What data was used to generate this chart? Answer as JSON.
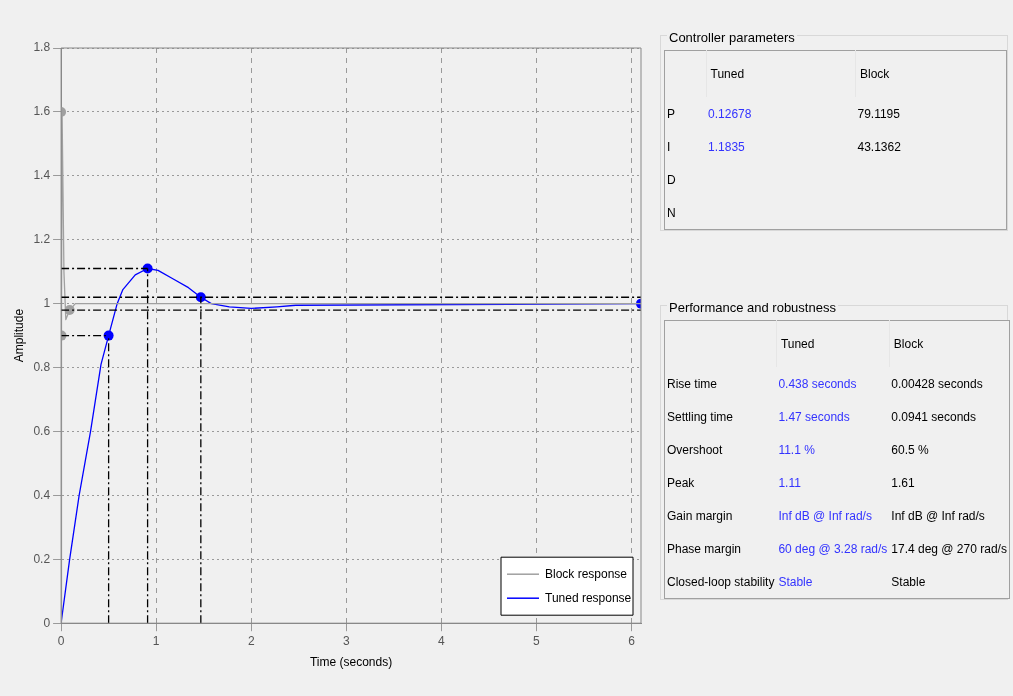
{
  "chart_data": [
    {
      "type": "line",
      "xlabel": "Time (seconds)",
      "ylabel": "Amplitude",
      "xlim": [
        0,
        6.1
      ],
      "xticks": [
        0,
        1,
        2,
        3,
        4,
        5,
        6
      ],
      "ylim": [
        0,
        1.8
      ],
      "yticks": [
        0,
        0.2,
        0.4,
        0.6,
        0.8,
        1,
        1.2,
        1.4,
        1.6,
        1.8
      ],
      "grid": true,
      "legend": "bottom right",
      "ref_lines": [
        {
          "axis": "y",
          "value": 1.02,
          "color": "#000000",
          "line_style": "dashed"
        },
        {
          "axis": "y",
          "value": 0.98,
          "color": "#000000",
          "line_style": "dashed"
        }
      ],
      "series": [
        {
          "color": "#000000",
          "line_style": "dashed",
          "marker": "none",
          "x": [
            0,
            0.91
          ],
          "values": [
            1.11,
            1.11
          ]
        },
        {
          "color": "#000000",
          "line_style": "dashed",
          "marker": "none",
          "x": [
            0,
            0.5
          ],
          "values": [
            0.9,
            0.9
          ]
        },
        {
          "color": "#000000",
          "line_style": "dashed",
          "marker": "none",
          "x": [
            0.5,
            0.5
          ],
          "values": [
            0,
            0.9
          ]
        },
        {
          "color": "#000000",
          "line_style": "dashed",
          "marker": "none",
          "x": [
            0.91,
            0.91
          ],
          "values": [
            0,
            1.11
          ]
        },
        {
          "color": "#000000",
          "line_style": "dashed",
          "marker": "none",
          "x": [
            1.47,
            1.47
          ],
          "values": [
            0,
            1.02
          ]
        },
        {
          "name": "Block response",
          "color": "#a0a0a0",
          "line_style": "solid",
          "marker": "none",
          "x": [
            0,
            0.004,
            0.01,
            0.03,
            0.05,
            0.09,
            0.15,
            6.1
          ],
          "values": [
            0,
            0.9,
            1.61,
            1.1,
            0.95,
            0.98,
            1.0,
            1.0
          ]
        },
        {
          "name": "Tuned response",
          "color": "#0000ff",
          "line_style": "solid",
          "marker": "none",
          "x": [
            0,
            0.09,
            0.19,
            0.31,
            0.42,
            0.5,
            0.59,
            0.65,
            0.78,
            0.91,
            1.02,
            1.18,
            1.34,
            1.47,
            1.58,
            1.77,
            2.0,
            2.27,
            2.47,
            6.1
          ],
          "values": [
            0,
            0.2,
            0.4,
            0.6,
            0.81,
            0.9,
            1.0,
            1.044,
            1.09,
            1.11,
            1.104,
            1.077,
            1.05,
            1.02,
            1.0,
            0.99,
            0.985,
            0.99,
            0.995,
            1.0
          ]
        },
        {
          "type": "scatter",
          "color": "#a0a0a0",
          "marker": "circle",
          "x": [
            0,
            0.004,
            0.09
          ],
          "values": [
            1.6,
            0.9,
            0.98
          ]
        },
        {
          "type": "scatter",
          "color": "#0000ff",
          "marker": "circle",
          "x": [
            0.5,
            0.91,
            1.47,
            6.1
          ],
          "values": [
            0.9,
            1.11,
            1.02,
            1.0
          ]
        }
      ]
    },
    {
      "type": "other",
      "title": "Controller parameters",
      "categories": [
        "P",
        "I",
        "D",
        "N"
      ],
      "annotations": [
        "Tuned",
        "Block",
        "0.12678",
        "79.1195",
        "1.1835",
        "43.1362"
      ]
    },
    {
      "type": "other",
      "title": "Performance and robustness",
      "categories": [
        "Rise time",
        "Settling time",
        "Overshoot",
        "Peak",
        "Gain margin",
        "Phase margin",
        "Closed-loop stability"
      ],
      "annotations": [
        "Tuned",
        "Block",
        "0.438 seconds",
        "0.00428 seconds",
        "1.47 seconds",
        "0.0941 seconds",
        "11.1 %",
        "60.5 %",
        "1.11",
        "1.61",
        "Inf dB @ Inf rad/s",
        "Inf dB @ Inf rad/s",
        "60 deg @ 3.28 rad/s",
        "17.4 deg @ 270 rad/s",
        "Stable",
        "Stable"
      ]
    }
  ]
}
